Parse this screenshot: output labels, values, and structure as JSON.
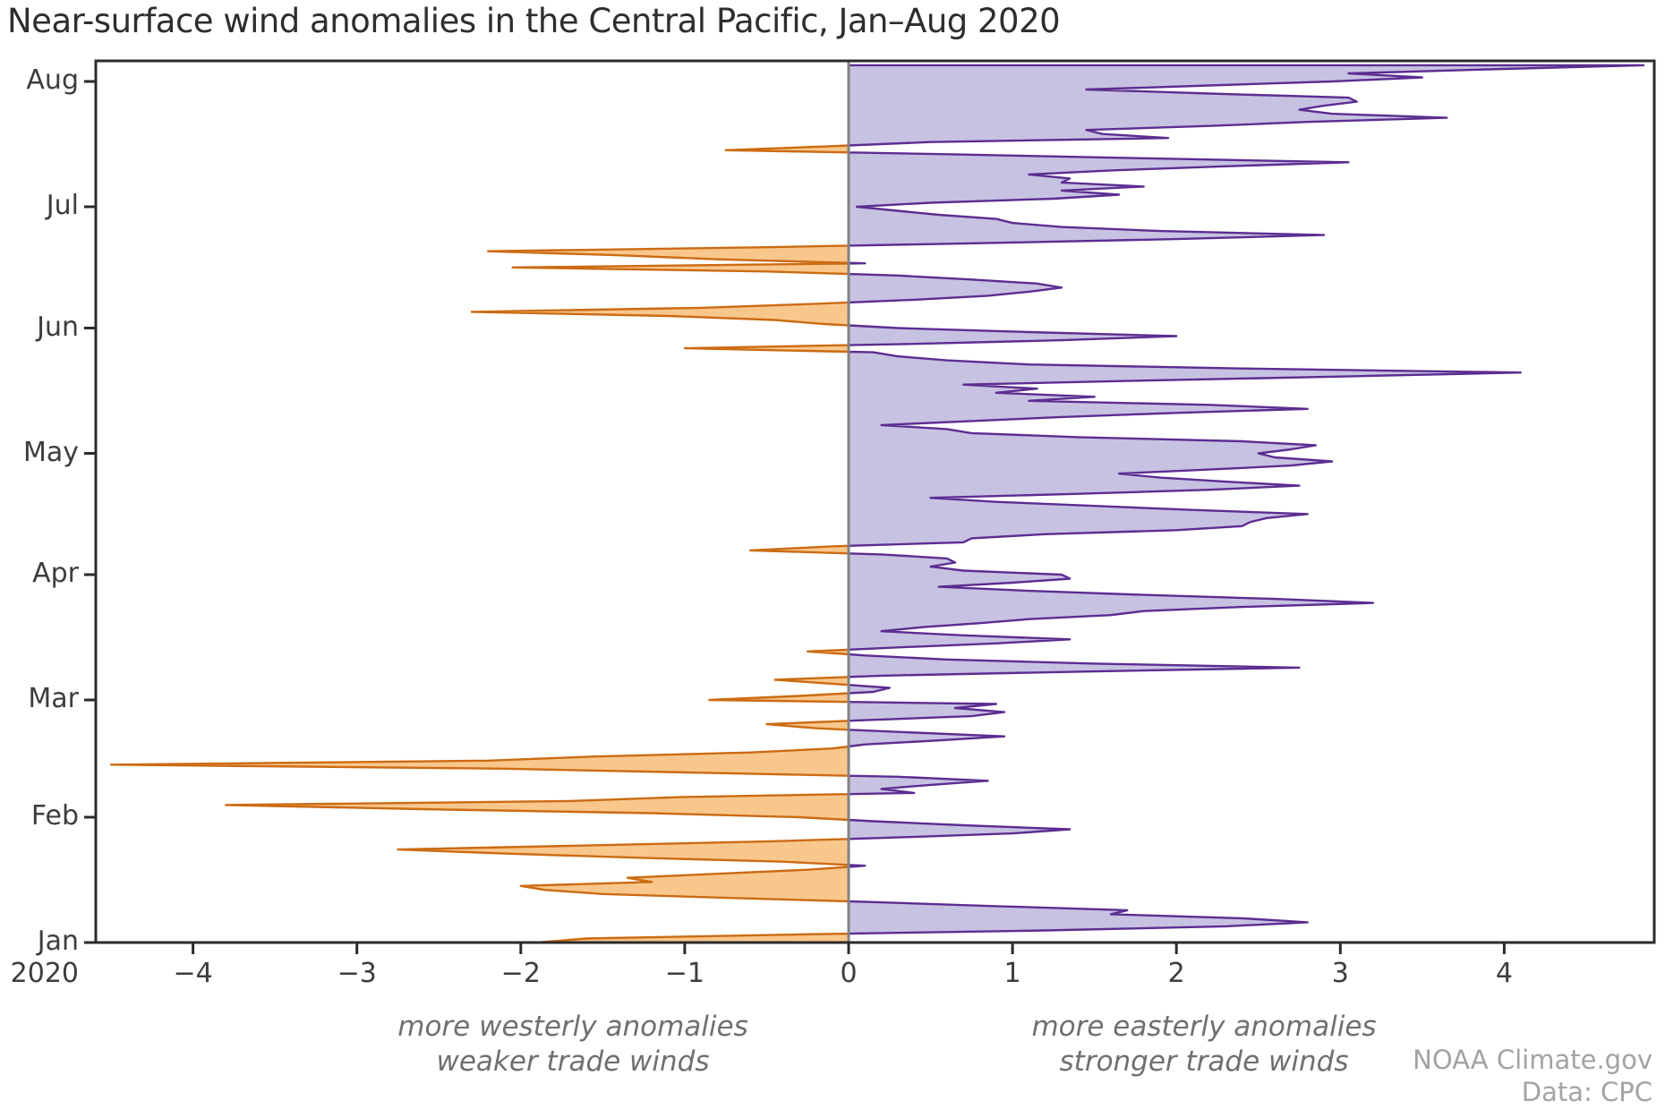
{
  "title": "Near-surface wind anomalies in the Central Pacific, Jan–Aug 2020",
  "annotations": {
    "left": [
      "more westerly anomalies",
      "weaker trade winds"
    ],
    "right": [
      "more easterly anomalies",
      "stronger trade winds"
    ]
  },
  "credit": [
    "NOAA Climate.gov",
    "Data: CPC"
  ],
  "axes": {
    "x_ticks": [
      {
        "label": "−4",
        "value": -4
      },
      {
        "label": "−3",
        "value": -3
      },
      {
        "label": "−2",
        "value": -2
      },
      {
        "label": "−1",
        "value": -1
      },
      {
        "label": "0",
        "value": 0
      },
      {
        "label": "1",
        "value": 1
      },
      {
        "label": "2",
        "value": 2
      },
      {
        "label": "3",
        "value": 3
      },
      {
        "label": "4",
        "value": 4
      }
    ],
    "month_ticks": [
      {
        "label": "Jan",
        "day": 0
      },
      {
        "label": "Feb",
        "day": 31
      },
      {
        "label": "Mar",
        "day": 60
      },
      {
        "label": "Apr",
        "day": 91
      },
      {
        "label": "May",
        "day": 121
      },
      {
        "label": "Jun",
        "day": 152
      },
      {
        "label": "Jul",
        "day": 182
      },
      {
        "label": "Aug",
        "day": 213
      }
    ],
    "year_label": "2020",
    "x_range": [
      -4.59,
      4.92
    ]
  },
  "colors": {
    "easterly_fill": "#c7c2e2",
    "easterly_stroke": "#5c2d91",
    "westerly_fill": "#f9c78c",
    "westerly_stroke": "#cc6b13",
    "zero_line": "#828282",
    "frame": "#2b2b2b"
  },
  "chart_data": {
    "type": "area",
    "orientation": "horizontal-time-vertical",
    "title": "Near-surface wind anomalies in the Central Pacific, Jan–Aug 2020",
    "value_axis_ticks": [
      -4,
      -3,
      -2,
      -1,
      0,
      1,
      2,
      3,
      4
    ],
    "value_axis_range": [
      -4.59,
      4.92
    ],
    "time_axis": {
      "start": "2020-01-01",
      "end": "2020-08-05",
      "step_days": 1,
      "tick_labels": [
        "Jan 2020",
        "Feb",
        "Mar",
        "Apr",
        "May",
        "Jun",
        "Jul",
        "Aug"
      ]
    },
    "positive_meaning": "more easterly anomalies / stronger trade winds",
    "negative_meaning": "more westerly anomalies / weaker trade winds",
    "grid": false,
    "legend": "none",
    "series": [
      {
        "name": "daily near-surface zonal wind anomaly",
        "start_date": "2020-01-01",
        "step_days": 1,
        "values": [
          -1.9,
          -1.6,
          -0.3,
          1.2,
          2.3,
          2.8,
          2.4,
          1.6,
          1.7,
          0.9,
          0.15,
          -0.7,
          -1.5,
          -1.85,
          -2.0,
          -1.2,
          -1.35,
          -0.8,
          -0.25,
          0.1,
          -0.4,
          -1.3,
          -2.1,
          -2.75,
          -1.6,
          -0.5,
          0.3,
          1.0,
          1.35,
          0.7,
          0.15,
          -0.3,
          -1.2,
          -2.6,
          -3.8,
          -1.7,
          -1.0,
          0.4,
          0.2,
          0.5,
          0.85,
          0.3,
          -0.9,
          -2.1,
          -4.5,
          -2.2,
          -1.55,
          -0.6,
          -0.1,
          0.1,
          0.55,
          0.95,
          0.35,
          -0.2,
          -0.5,
          0.1,
          0.75,
          0.95,
          0.65,
          0.9,
          -0.85,
          -0.3,
          0.15,
          0.25,
          -0.1,
          -0.45,
          0.2,
          1.4,
          2.75,
          1.5,
          0.6,
          0.1,
          -0.25,
          0.3,
          0.9,
          1.35,
          0.7,
          0.2,
          0.45,
          0.8,
          1.1,
          1.6,
          1.8,
          2.4,
          3.2,
          2.6,
          1.8,
          1.1,
          0.55,
          1.0,
          1.35,
          1.3,
          0.7,
          0.5,
          0.65,
          0.6,
          0.2,
          -0.6,
          -0.1,
          0.7,
          0.75,
          1.2,
          2.0,
          2.4,
          2.45,
          2.55,
          2.8,
          2.1,
          1.5,
          0.9,
          0.5,
          1.4,
          2.2,
          2.75,
          2.3,
          1.9,
          1.65,
          2.2,
          2.7,
          2.95,
          2.6,
          2.5,
          2.7,
          2.85,
          2.4,
          1.4,
          0.75,
          0.6,
          0.2,
          0.75,
          1.3,
          2.0,
          2.8,
          2.2,
          1.1,
          1.5,
          0.9,
          1.15,
          0.7,
          1.8,
          3.0,
          4.1,
          2.4,
          1.1,
          0.6,
          0.3,
          0.15,
          -1.0,
          0.3,
          1.3,
          2.0,
          1.1,
          0.3,
          -0.15,
          -0.45,
          -1.1,
          -2.3,
          -0.9,
          -0.2,
          0.4,
          0.85,
          1.1,
          1.3,
          1.15,
          0.75,
          0.3,
          -0.5,
          -2.05,
          0.1,
          -0.8,
          -1.4,
          -2.2,
          -0.5,
          0.8,
          2.0,
          2.9,
          1.9,
          1.3,
          1.0,
          0.9,
          0.55,
          0.3,
          0.05,
          0.5,
          1.25,
          1.65,
          1.3,
          1.8,
          1.3,
          1.35,
          1.1,
          1.6,
          2.3,
          3.05,
          1.8,
          0.6,
          -0.75,
          -0.1,
          0.5,
          1.95,
          1.55,
          1.45,
          2.2,
          2.8,
          3.65,
          2.95,
          2.75,
          2.9,
          3.1,
          3.05,
          2.2,
          1.45,
          2.2,
          2.95,
          3.5,
          3.05,
          3.9,
          4.85
        ]
      }
    ]
  }
}
